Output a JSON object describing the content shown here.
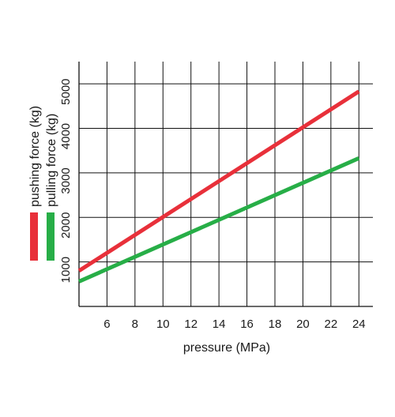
{
  "chart_data": {
    "type": "line",
    "xlabel": "pressure (MPa)",
    "ylabel": "",
    "xlim": [
      4,
      25
    ],
    "ylim": [
      0,
      5500
    ],
    "x_ticks": [
      6,
      8,
      10,
      12,
      14,
      16,
      18,
      20,
      22,
      24
    ],
    "x_tick_labels": [
      "6",
      "8",
      "10",
      "12",
      "14",
      "16",
      "18",
      "20",
      "22",
      "24"
    ],
    "y_ticks": [
      1000,
      2000,
      3000,
      4000,
      5000
    ],
    "y_tick_labels": [
      "1000",
      "2000",
      "3000",
      "4000",
      "5000"
    ],
    "grid": true,
    "legend_position": "left",
    "series": [
      {
        "name": "pushing force (kg)",
        "color": "#e8303a",
        "x": [
          4,
          24
        ],
        "y": [
          800,
          4830
        ]
      },
      {
        "name": "pulling force (kg)",
        "color": "#27ae47",
        "x": [
          4,
          24
        ],
        "y": [
          560,
          3330
        ]
      }
    ]
  }
}
